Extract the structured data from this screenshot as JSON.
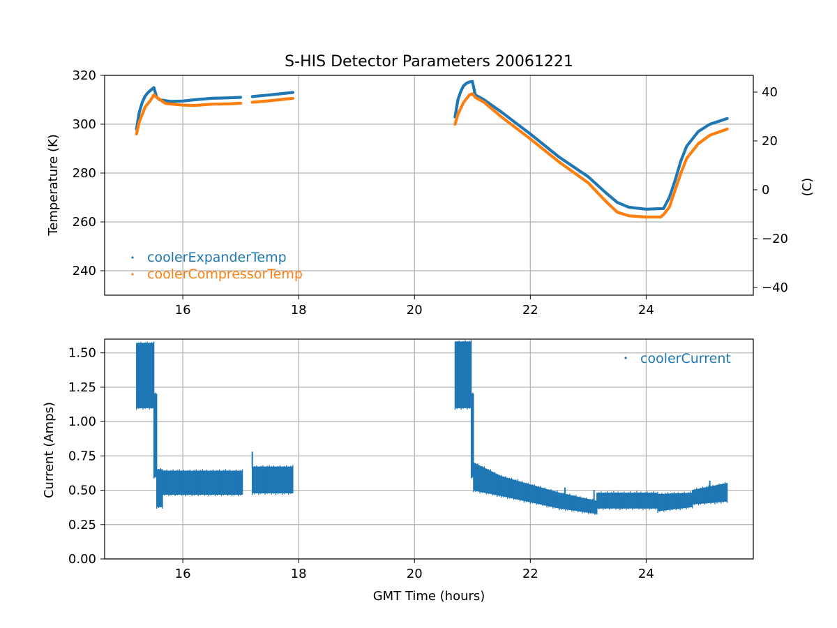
{
  "chart_data": [
    {
      "type": "scatter",
      "title": "S-HIS Detector Parameters 20061221",
      "xlabel": "",
      "ylabel": "Temperature (K)",
      "y2label": "(C)",
      "xlim": [
        14.65,
        25.85
      ],
      "ylim": [
        230,
        320
      ],
      "y2lim": [
        -43.15,
        46.85
      ],
      "xticks": [
        16,
        18,
        20,
        22,
        24
      ],
      "yticks": [
        240,
        260,
        280,
        300,
        320
      ],
      "y2ticks": [
        -40,
        -20,
        0,
        20,
        40
      ],
      "y2ticklabels": [
        "−40",
        "−20",
        "0",
        "20",
        "40"
      ],
      "grid": true,
      "legend_position": "lower-left",
      "series": [
        {
          "name": "coolerExpanderTemp",
          "color": "#1f77b4",
          "segments": [
            [
              [
                15.2,
                298
              ],
              [
                15.25,
                305
              ],
              [
                15.3,
                309
              ],
              [
                15.35,
                311.5
              ],
              [
                15.4,
                313
              ],
              [
                15.45,
                314
              ],
              [
                15.5,
                315
              ],
              [
                15.55,
                311
              ],
              [
                15.6,
                310
              ],
              [
                15.8,
                309.3
              ],
              [
                16.0,
                309.5
              ],
              [
                16.2,
                310.0
              ],
              [
                16.5,
                310.6
              ],
              [
                16.8,
                310.8
              ],
              [
                17.0,
                311.0
              ]
            ],
            [
              [
                17.2,
                311.3
              ],
              [
                17.5,
                312.0
              ],
              [
                17.9,
                313.0
              ]
            ],
            [
              [
                20.7,
                303
              ],
              [
                20.75,
                310
              ],
              [
                20.8,
                313.5
              ],
              [
                20.85,
                315.8
              ],
              [
                20.9,
                316.8
              ],
              [
                20.95,
                317.3
              ],
              [
                21.0,
                317.5
              ],
              [
                21.05,
                312
              ],
              [
                21.2,
                310
              ],
              [
                21.5,
                305
              ],
              [
                22.0,
                296
              ],
              [
                22.5,
                286.5
              ],
              [
                23.0,
                278.5
              ],
              [
                23.3,
                272
              ],
              [
                23.5,
                268
              ],
              [
                23.7,
                266
              ],
              [
                24.0,
                265.2
              ],
              [
                24.3,
                265.5
              ],
              [
                24.4,
                270
              ],
              [
                24.5,
                277
              ],
              [
                24.6,
                285
              ],
              [
                24.7,
                291
              ],
              [
                24.9,
                297
              ],
              [
                25.1,
                300
              ],
              [
                25.4,
                302.3
              ]
            ]
          ]
        },
        {
          "name": "coolerCompressorTemp",
          "color": "#ff7f0e",
          "segments": [
            [
              [
                15.2,
                296
              ],
              [
                15.25,
                301
              ],
              [
                15.35,
                307
              ],
              [
                15.45,
                310
              ],
              [
                15.5,
                312
              ],
              [
                15.55,
                311
              ],
              [
                15.7,
                308.5
              ],
              [
                16.0,
                307.8
              ],
              [
                16.2,
                307.7
              ],
              [
                16.5,
                308.2
              ],
              [
                16.8,
                308.3
              ],
              [
                17.0,
                308.6
              ]
            ],
            [
              [
                17.2,
                309.0
              ],
              [
                17.5,
                309.6
              ],
              [
                17.9,
                310.6
              ]
            ],
            [
              [
                20.7,
                300
              ],
              [
                20.75,
                304
              ],
              [
                20.85,
                309
              ],
              [
                20.95,
                312
              ],
              [
                21.0,
                312.5
              ],
              [
                21.05,
                311
              ],
              [
                21.2,
                309
              ],
              [
                21.5,
                303
              ],
              [
                22.0,
                294
              ],
              [
                22.5,
                284.5
              ],
              [
                23.0,
                276
              ],
              [
                23.3,
                268.5
              ],
              [
                23.5,
                264
              ],
              [
                23.7,
                262.5
              ],
              [
                24.0,
                262
              ],
              [
                24.25,
                262
              ],
              [
                24.3,
                263
              ],
              [
                24.4,
                266
              ],
              [
                24.5,
                273
              ],
              [
                24.6,
                280
              ],
              [
                24.7,
                286
              ],
              [
                24.9,
                292
              ],
              [
                25.1,
                295.5
              ],
              [
                25.4,
                298
              ]
            ]
          ]
        }
      ]
    },
    {
      "type": "scatter",
      "title": "",
      "xlabel": "GMT Time (hours)",
      "ylabel": "Current (Amps)",
      "xlim": [
        14.65,
        25.85
      ],
      "ylim": [
        0,
        1.6
      ],
      "xticks": [
        16,
        18,
        20,
        22,
        24
      ],
      "yticks": [
        0.0,
        0.25,
        0.5,
        0.75,
        1.0,
        1.25,
        1.5
      ],
      "yticklabels": [
        "0.00",
        "0.25",
        "0.50",
        "0.75",
        "1.00",
        "1.25",
        "1.50"
      ],
      "grid": true,
      "legend_position": "upper-right",
      "series": [
        {
          "name": "coolerCurrent",
          "color": "#1f77b4",
          "bands": [
            {
              "x": [
                15.2,
                15.5
              ],
              "lo": 1.1,
              "hi": 1.57
            },
            {
              "x": [
                15.5,
                15.55
              ],
              "lo": 0.6,
              "hi": 1.2
            },
            {
              "x": [
                15.55,
                15.65
              ],
              "lo": 0.38,
              "hi": 0.65
            },
            {
              "x": [
                15.65,
                17.03
              ],
              "lo": 0.47,
              "hi": 0.64
            },
            {
              "x": [
                17.2,
                17.9
              ],
              "lo": 0.48,
              "hi": 0.67
            },
            {
              "x": [
                20.7,
                20.98
              ],
              "lo": 1.1,
              "hi": 1.58
            },
            {
              "x": [
                20.98,
                21.02
              ],
              "lo": 0.6,
              "hi": 1.2
            },
            {
              "x": [
                21.02,
                21.5
              ],
              "lo": 0.5,
              "hi": 0.7,
              "lo2": 0.46,
              "hi2": 0.6
            },
            {
              "x": [
                21.5,
                22.5
              ],
              "lo": 0.46,
              "hi": 0.6,
              "lo2": 0.37,
              "hi2": 0.48
            },
            {
              "x": [
                22.5,
                23.15
              ],
              "lo": 0.37,
              "hi": 0.48,
              "lo2": 0.33,
              "hi2": 0.42
            },
            {
              "x": [
                23.15,
                24.2
              ],
              "lo": 0.37,
              "hi": 0.48
            },
            {
              "x": [
                24.2,
                24.8
              ],
              "lo": 0.35,
              "hi": 0.47,
              "lo2": 0.38,
              "hi2": 0.48
            },
            {
              "x": [
                24.8,
                25.4
              ],
              "lo": 0.4,
              "hi": 0.5,
              "lo2": 0.42,
              "hi2": 0.55
            }
          ],
          "spikes": [
            {
              "x": 17.2,
              "y": 0.78
            },
            {
              "x": 25.1,
              "y": 0.57
            },
            {
              "x": 22.6,
              "y": 0.52
            },
            {
              "x": 23.1,
              "y": 0.5
            }
          ]
        }
      ]
    }
  ]
}
